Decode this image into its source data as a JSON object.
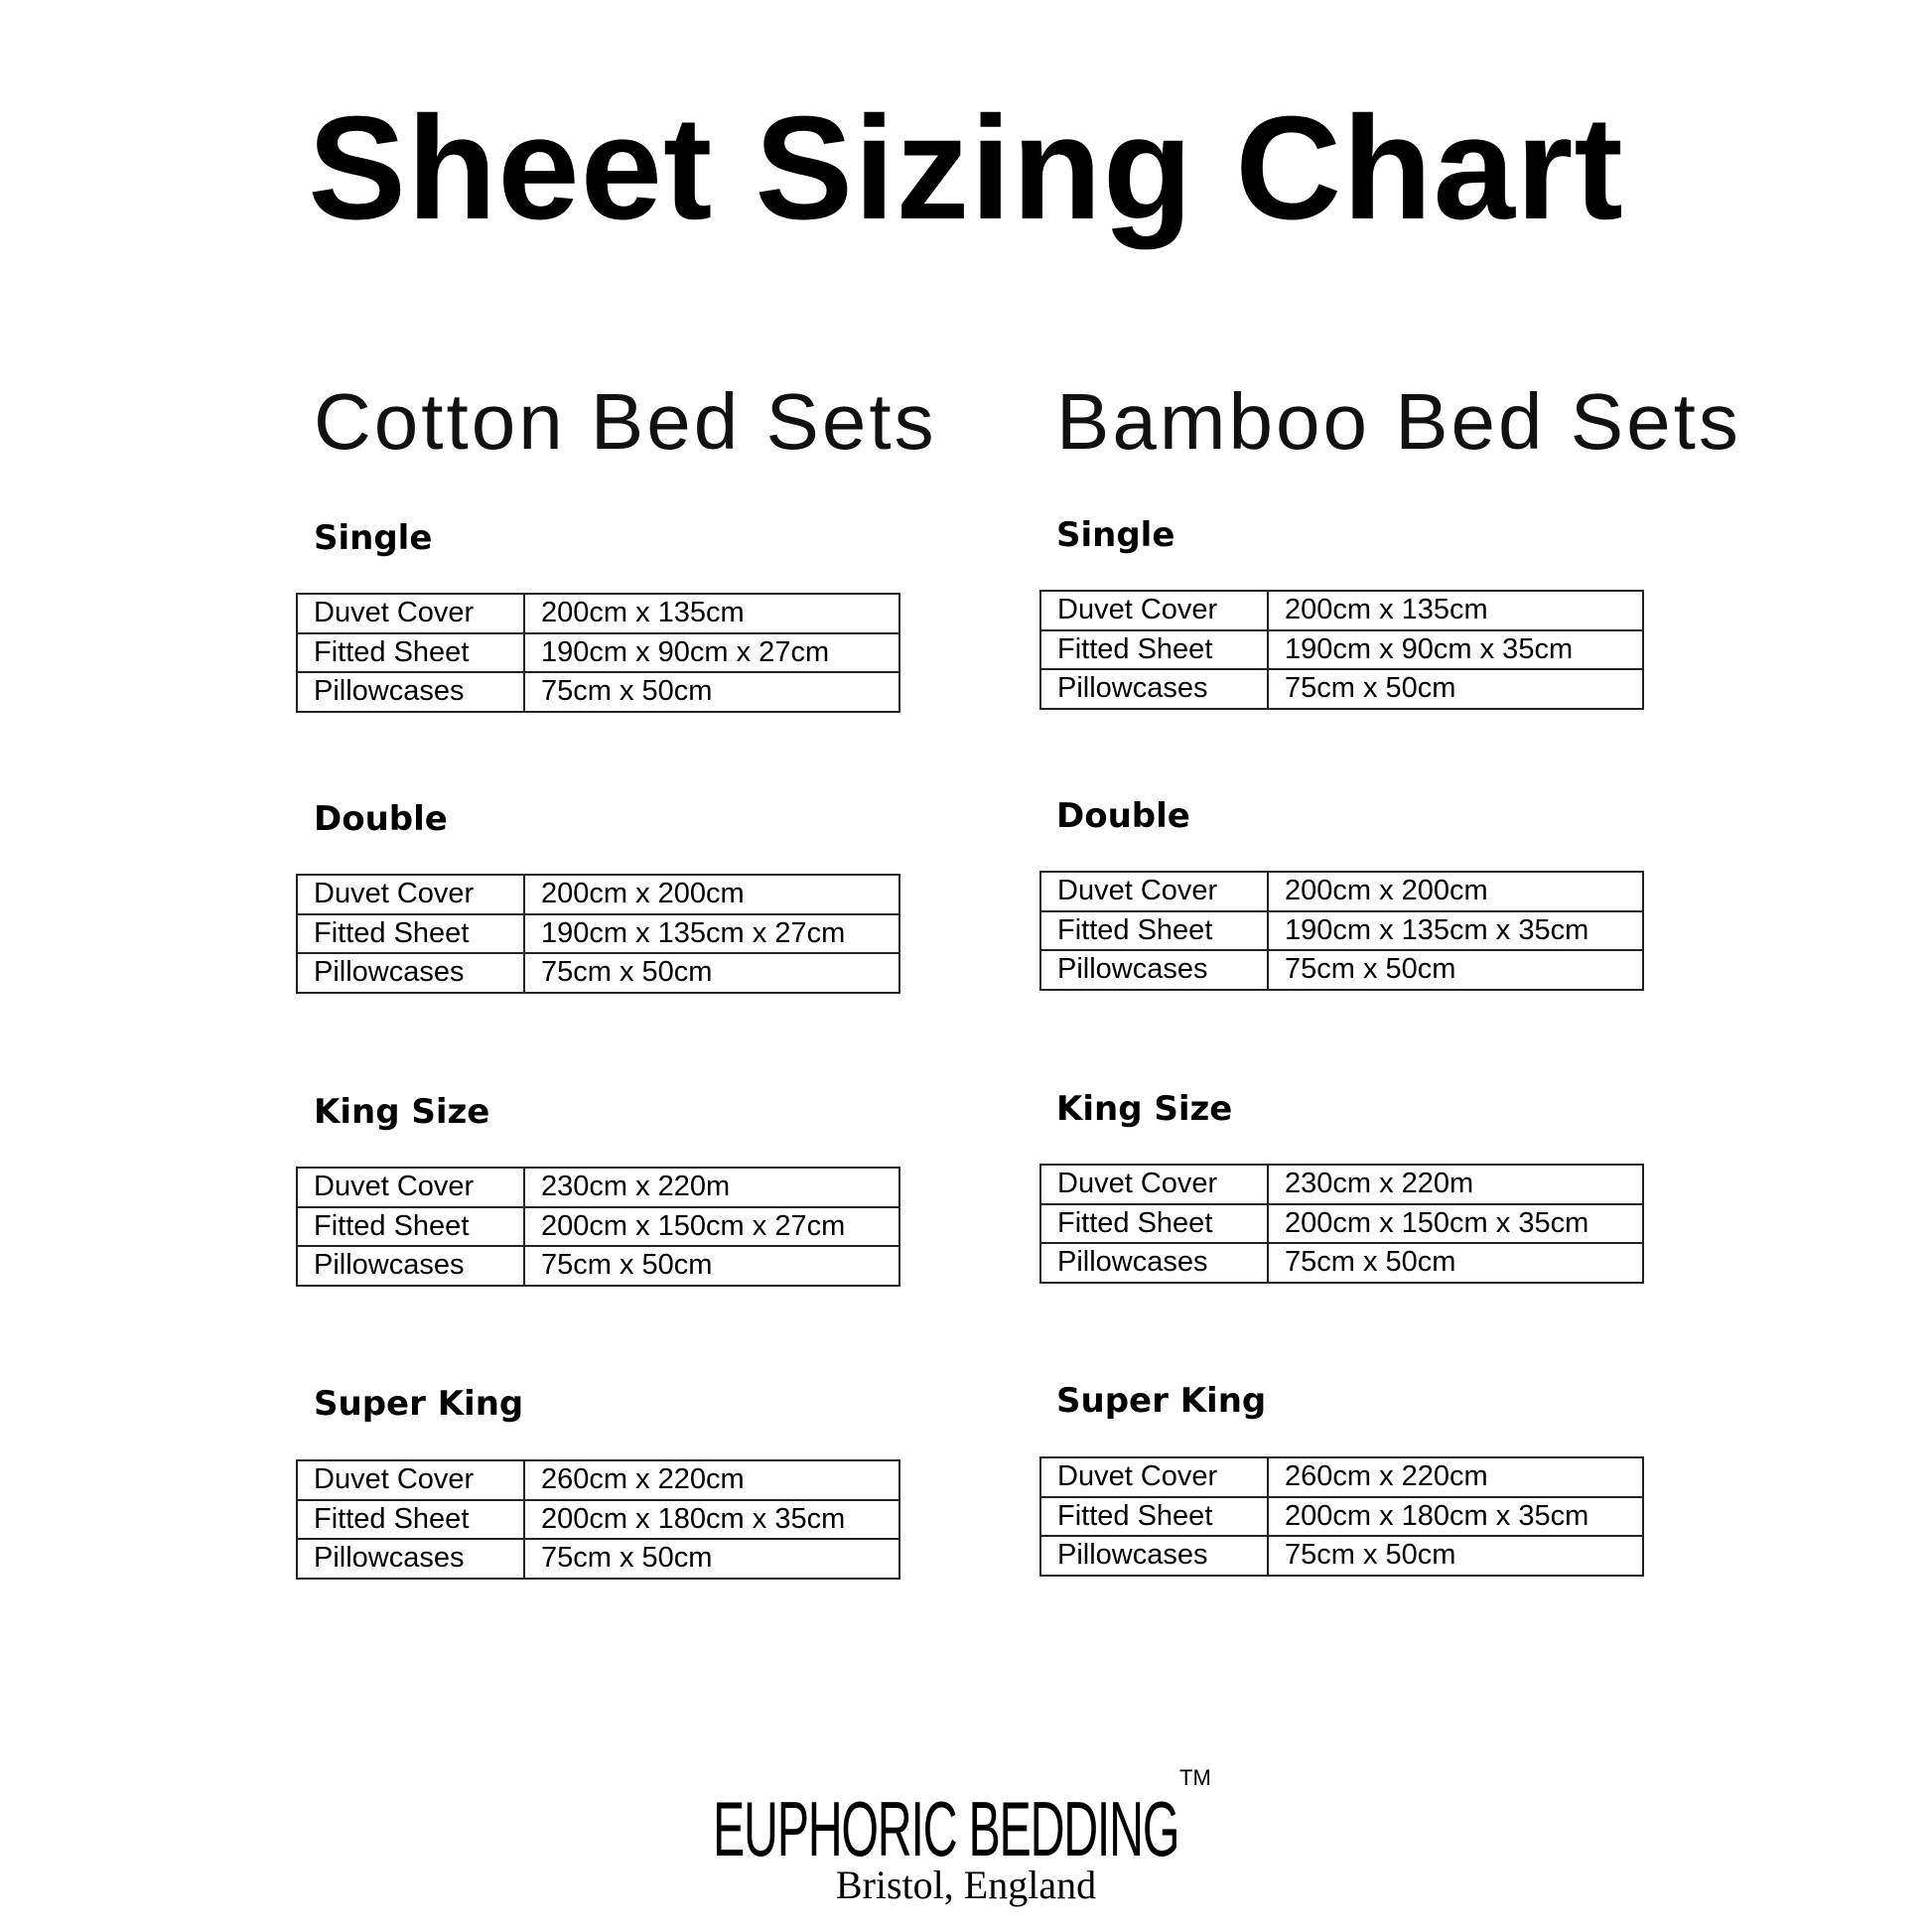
{
  "title": "Sheet Sizing Chart",
  "columns": [
    {
      "heading": "Cotton Bed Sets",
      "sections": [
        {
          "name": "Single",
          "rows": [
            [
              "Duvet Cover",
              "200cm x 135cm"
            ],
            [
              "Fitted Sheet",
              "190cm x 90cm x 27cm"
            ],
            [
              "Pillowcases",
              "75cm x 50cm"
            ]
          ]
        },
        {
          "name": "Double",
          "rows": [
            [
              "Duvet Cover",
              "200cm x 200cm"
            ],
            [
              "Fitted Sheet",
              "190cm x 135cm x 27cm"
            ],
            [
              "Pillowcases",
              "75cm x 50cm"
            ]
          ]
        },
        {
          "name": "King Size",
          "rows": [
            [
              "Duvet Cover",
              "230cm x 220m"
            ],
            [
              "Fitted Sheet",
              "200cm x 150cm x 27cm"
            ],
            [
              "Pillowcases",
              "75cm x 50cm"
            ]
          ]
        },
        {
          "name": "Super King",
          "rows": [
            [
              "Duvet Cover",
              "260cm x 220cm"
            ],
            [
              "Fitted Sheet",
              "200cm x 180cm x 35cm"
            ],
            [
              "Pillowcases",
              "75cm x 50cm"
            ]
          ]
        }
      ]
    },
    {
      "heading": "Bamboo Bed Sets",
      "sections": [
        {
          "name": "Single",
          "rows": [
            [
              "Duvet Cover",
              "200cm x 135cm"
            ],
            [
              "Fitted Sheet",
              "190cm x 90cm x 35cm"
            ],
            [
              "Pillowcases",
              "75cm x 50cm"
            ]
          ]
        },
        {
          "name": "Double",
          "rows": [
            [
              "Duvet Cover",
              "200cm x 200cm"
            ],
            [
              "Fitted Sheet",
              "190cm x 135cm x 35cm"
            ],
            [
              "Pillowcases",
              "75cm x 50cm"
            ]
          ]
        },
        {
          "name": "King Size",
          "rows": [
            [
              "Duvet Cover",
              "230cm x 220m"
            ],
            [
              "Fitted Sheet",
              "200cm x 150cm x 35cm"
            ],
            [
              "Pillowcases",
              "75cm x 50cm"
            ]
          ]
        },
        {
          "name": "Super King",
          "rows": [
            [
              "Duvet Cover",
              "260cm x 220cm"
            ],
            [
              "Fitted Sheet",
              "200cm x 180cm x 35cm"
            ],
            [
              "Pillowcases",
              "75cm x 50cm"
            ]
          ]
        }
      ]
    }
  ],
  "brand": {
    "logo": "EUPHORIC BEDDING",
    "trademark": "TM",
    "location": "Bristol, England"
  }
}
